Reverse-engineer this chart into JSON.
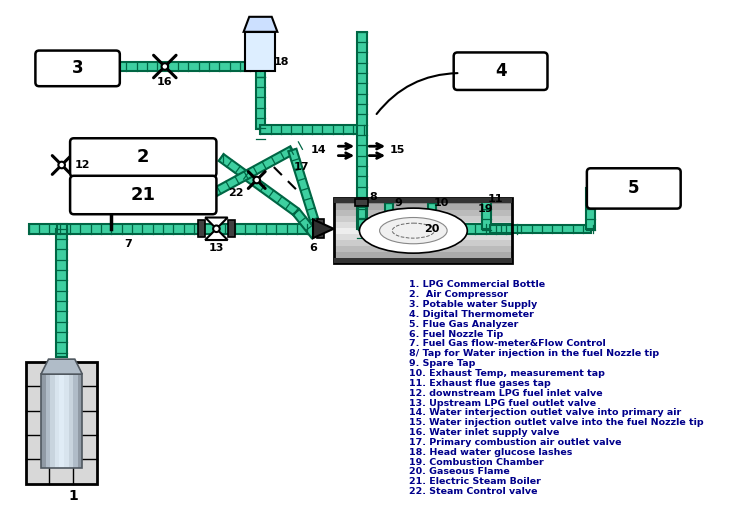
{
  "background_color": "#ffffff",
  "pipe_color": "#3ecfa0",
  "pipe_dark": "#006644",
  "box_color": "#ffffff",
  "box_border": "#000000",
  "label_color": "#00008B",
  "legend_items": [
    "1. LPG Commercial Bottle",
    "2.  Air Compressor",
    "3. Potable water Supply",
    "4. Digital Thermometer",
    "5. Flue Gas Analyzer",
    "6. Fuel Nozzle Tip",
    "7. Fuel Gas flow-meter&Flow Control",
    "8/ Tap for Water injection in the fuel Nozzle tip",
    "9. Spare Tap",
    "10. Exhaust Temp, measurement tap",
    "11. Exhaust flue gases tap",
    "12. downstream LPG fuel inlet valve",
    "13. Upstream LPG fuel outlet valve",
    "14. Water interjection outlet valve into primary air",
    "15. Water injection outlet valve into the fuel Nozzle tip",
    "16. Water inlet supply valve",
    "17. Primary combustion air outlet valve",
    "18. Head water glucose lashes",
    "19. Combustion Chamber",
    "20. Gaseous Flame",
    "21. Electric Steam Boiler",
    "22. Steam Control valve"
  ],
  "figsize": [
    7.56,
    5.19
  ],
  "dpi": 100
}
